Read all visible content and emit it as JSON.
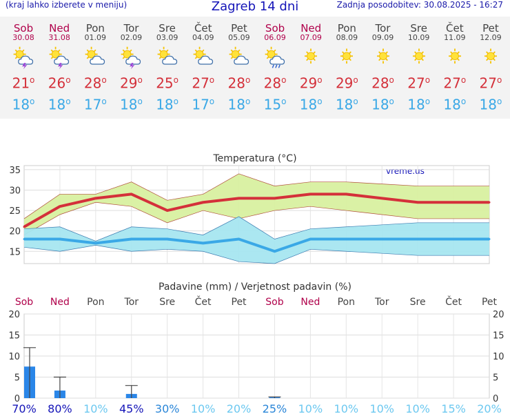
{
  "header": {
    "left_note": "(kraj lahko izberete v meniju)",
    "title": "Zagreb 14 dni",
    "updated": "Zadnja posodobitev: 30.08.2025 - 16:27"
  },
  "colors": {
    "weekend": "#b0004a",
    "weekday": "#444444",
    "max_line": "#d4303a",
    "min_line": "#3aa8e6",
    "max_band": "#d8f0a0",
    "min_band": "#a6e6f0",
    "precip_bar": "#2a86e8",
    "prob_strong": "#1414b8",
    "prob_light": "#6cc8f0"
  },
  "days": [
    {
      "name": "Sob",
      "date": "30.08",
      "weekend": true,
      "icon": "sun-cloud-thunder-icon",
      "max": "21",
      "min": "18"
    },
    {
      "name": "Ned",
      "date": "31.08",
      "weekend": true,
      "icon": "sun-cloud-thunder-icon",
      "max": "26",
      "min": "18"
    },
    {
      "name": "Pon",
      "date": "01.09",
      "weekend": false,
      "icon": "sun-cloud-icon",
      "max": "28",
      "min": "17"
    },
    {
      "name": "Tor",
      "date": "02.09",
      "weekend": false,
      "icon": "sun-cloud-thunder-icon",
      "max": "29",
      "min": "18"
    },
    {
      "name": "Sre",
      "date": "03.09",
      "weekend": false,
      "icon": "sun-cloud-icon",
      "max": "25",
      "min": "18"
    },
    {
      "name": "Čet",
      "date": "04.09",
      "weekend": false,
      "icon": "sun-cloud-icon",
      "max": "27",
      "min": "17"
    },
    {
      "name": "Pet",
      "date": "05.09",
      "weekend": false,
      "icon": "sun-cloud-icon",
      "max": "28",
      "min": "18"
    },
    {
      "name": "Sob",
      "date": "06.09",
      "weekend": true,
      "icon": "sun-cloud-rain-icon",
      "max": "28",
      "min": "15"
    },
    {
      "name": "Ned",
      "date": "07.09",
      "weekend": true,
      "icon": "sun-icon",
      "max": "29",
      "min": "18"
    },
    {
      "name": "Pon",
      "date": "08.09",
      "weekend": false,
      "icon": "sun-icon",
      "max": "29",
      "min": "18"
    },
    {
      "name": "Tor",
      "date": "09.09",
      "weekend": false,
      "icon": "sun-icon",
      "max": "28",
      "min": "18"
    },
    {
      "name": "Sre",
      "date": "10.09",
      "weekend": false,
      "icon": "sun-icon",
      "max": "27",
      "min": "18"
    },
    {
      "name": "Čet",
      "date": "11.09",
      "weekend": false,
      "icon": "sun-icon",
      "max": "27",
      "min": "18"
    },
    {
      "name": "Pet",
      "date": "12.09",
      "weekend": false,
      "icon": "sun-icon",
      "max": "27",
      "min": "18"
    }
  ],
  "chart_data": [
    {
      "type": "line",
      "title": "Temperatura (°C)",
      "watermark": "vreme.us",
      "ylim": [
        12,
        36
      ],
      "yticks": [
        15,
        20,
        25,
        30,
        35
      ],
      "grid": true,
      "series": [
        {
          "values": [
            21,
            26,
            28,
            29,
            25,
            27,
            28,
            28,
            29,
            29,
            28,
            27,
            27,
            27
          ],
          "band_high": [
            23,
            29,
            29,
            32,
            27.5,
            29,
            34,
            31,
            32,
            32,
            31.5,
            31,
            31,
            31
          ],
          "band_low": [
            19,
            24,
            27,
            26,
            22,
            25,
            23,
            25,
            26,
            25,
            24,
            23,
            23,
            23
          ]
        },
        {
          "values": [
            18,
            18,
            17,
            18,
            18,
            17,
            18,
            15,
            18,
            18,
            18,
            18,
            18,
            18
          ],
          "band_high": [
            20.5,
            21,
            17.5,
            21,
            20.5,
            19,
            23.5,
            18,
            20.5,
            21,
            21.5,
            22,
            22,
            22
          ],
          "band_low": [
            16,
            15,
            16.5,
            15,
            15.5,
            15,
            12.5,
            12,
            15.5,
            15,
            14.5,
            14,
            14,
            14
          ]
        }
      ]
    },
    {
      "type": "bar",
      "title": "Padavine (mm) / Verjetnost padavin (%)",
      "ylim": [
        0,
        20
      ],
      "yticks": [
        0,
        5,
        10,
        15,
        20
      ],
      "grid": true,
      "values": [
        7.5,
        1.8,
        0,
        1.0,
        0,
        0,
        0,
        0.2,
        0,
        0,
        0,
        0,
        0,
        0
      ],
      "error_high": [
        12,
        5,
        0,
        3,
        0,
        0,
        0,
        0.3,
        0,
        0,
        0,
        0,
        0,
        0
      ],
      "probabilities": [
        "70%",
        "80%",
        "10%",
        "45%",
        "30%",
        "10%",
        "20%",
        "25%",
        "10%",
        "10%",
        "10%",
        "10%",
        "15%",
        "20%"
      ]
    }
  ]
}
